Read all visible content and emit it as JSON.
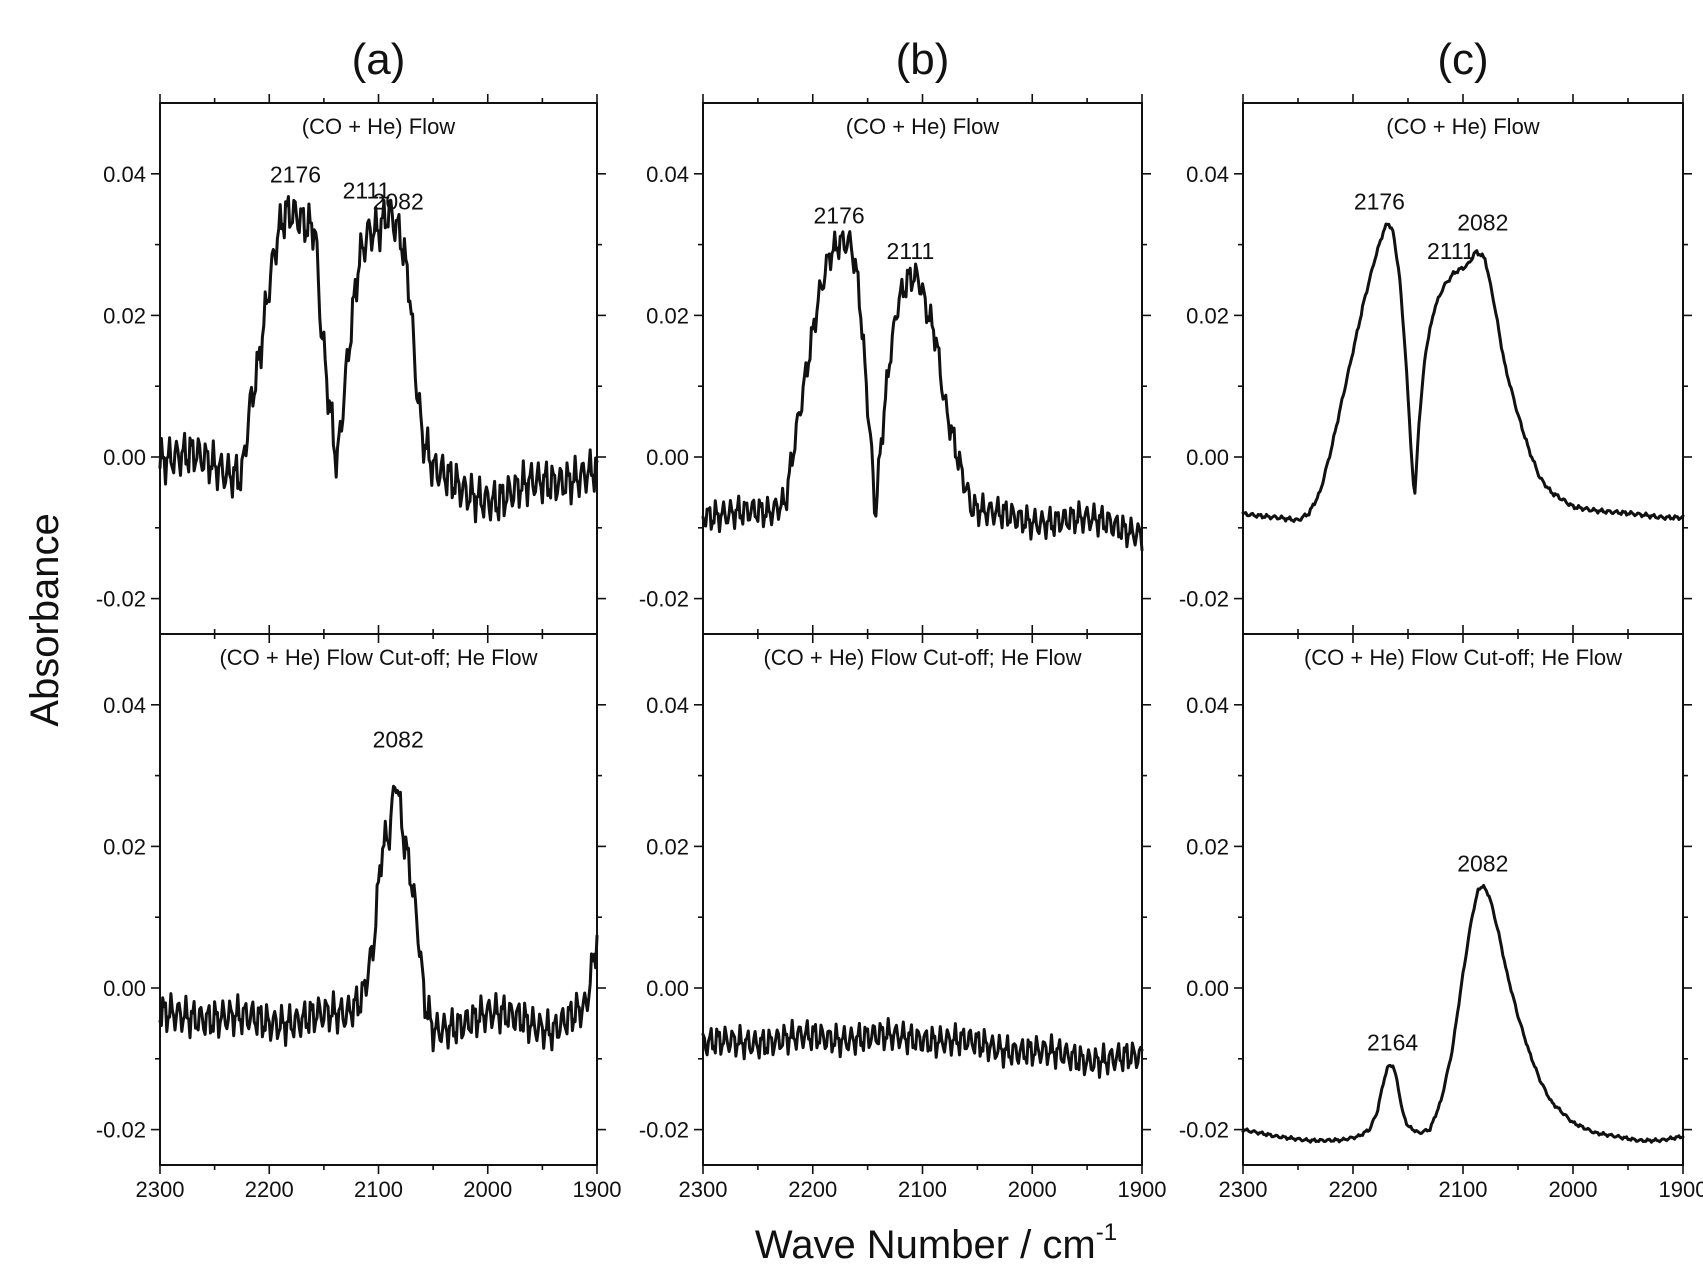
{
  "chart_data": {
    "type": "line",
    "y_axis_title": "Absorbance",
    "x_axis_title": "Wave Number / cm",
    "x_axis_title_superscript": "-1",
    "xlim": [
      2300,
      1900
    ],
    "ylim": [
      -0.025,
      0.05
    ],
    "x_ticks": [
      "2300",
      "2200",
      "2100",
      "2000",
      "1900"
    ],
    "y_ticks": [
      "0.04",
      "0.02",
      "0.00",
      "-0.02"
    ],
    "grid": false,
    "legend": "none",
    "panels": [
      {
        "label": "(a)",
        "top": {
          "condition": "(CO + He) Flow",
          "peaks": [
            {
              "text": "2176",
              "x": 2176,
              "y": 0.0368
            },
            {
              "text": "2111",
              "x": 2111,
              "y": 0.0345
            },
            {
              "text": "2082",
              "x": 2082,
              "y": 0.033
            }
          ],
          "noise": 0.004,
          "points": [
            [
              2300,
              0.0
            ],
            [
              2270,
              0.0
            ],
            [
              2240,
              -0.002
            ],
            [
              2225,
              -0.002
            ],
            [
              2218,
              0.007
            ],
            [
              2210,
              0.013
            ],
            [
              2200,
              0.024
            ],
            [
              2192,
              0.031
            ],
            [
              2185,
              0.034
            ],
            [
              2175,
              0.034
            ],
            [
              2165,
              0.033
            ],
            [
              2158,
              0.033
            ],
            [
              2153,
              0.02
            ],
            [
              2145,
              0.008
            ],
            [
              2138,
              -0.001
            ],
            [
              2132,
              0.008
            ],
            [
              2125,
              0.018
            ],
            [
              2118,
              0.027
            ],
            [
              2110,
              0.031
            ],
            [
              2100,
              0.032
            ],
            [
              2090,
              0.035
            ],
            [
              2080,
              0.032
            ],
            [
              2072,
              0.025
            ],
            [
              2066,
              0.012
            ],
            [
              2060,
              0.003
            ],
            [
              2050,
              -0.002
            ],
            [
              2020,
              -0.005
            ],
            [
              1990,
              -0.006
            ],
            [
              1960,
              -0.004
            ],
            [
              1930,
              -0.003
            ],
            [
              1900,
              -0.002
            ]
          ]
        },
        "bottom": {
          "condition": "(CO + He) Flow Cut-off; He Flow",
          "peaks": [
            {
              "text": "2082",
              "x": 2082,
              "y": 0.032
            }
          ],
          "noise": 0.0035,
          "points": [
            [
              2300,
              -0.004
            ],
            [
              2270,
              -0.004
            ],
            [
              2240,
              -0.004
            ],
            [
              2200,
              -0.005
            ],
            [
              2160,
              -0.004
            ],
            [
              2130,
              -0.004
            ],
            [
              2115,
              -0.001
            ],
            [
              2105,
              0.006
            ],
            [
              2097,
              0.02
            ],
            [
              2090,
              0.022
            ],
            [
              2084,
              0.03
            ],
            [
              2078,
              0.022
            ],
            [
              2070,
              0.015
            ],
            [
              2064,
              0.008
            ],
            [
              2058,
              -0.002
            ],
            [
              2050,
              -0.006
            ],
            [
              2030,
              -0.005
            ],
            [
              2000,
              -0.004
            ],
            [
              1970,
              -0.004
            ],
            [
              1940,
              -0.006
            ],
            [
              1910,
              -0.003
            ],
            [
              1900,
              0.007
            ]
          ]
        }
      },
      {
        "label": "(b)",
        "top": {
          "condition": "(CO + He) Flow",
          "peaks": [
            {
              "text": "2176",
              "x": 2176,
              "y": 0.031
            },
            {
              "text": "2111",
              "x": 2111,
              "y": 0.026
            }
          ],
          "noise": 0.0028,
          "points": [
            [
              2300,
              -0.008
            ],
            [
              2270,
              -0.008
            ],
            [
              2240,
              -0.008
            ],
            [
              2225,
              -0.006
            ],
            [
              2215,
              0.004
            ],
            [
              2205,
              0.013
            ],
            [
              2195,
              0.022
            ],
            [
              2185,
              0.028
            ],
            [
              2175,
              0.03
            ],
            [
              2165,
              0.03
            ],
            [
              2158,
              0.024
            ],
            [
              2152,
              0.012
            ],
            [
              2146,
              0.0
            ],
            [
              2143,
              -0.008
            ],
            [
              2138,
              0.002
            ],
            [
              2130,
              0.014
            ],
            [
              2122,
              0.022
            ],
            [
              2112,
              0.025
            ],
            [
              2104,
              0.025
            ],
            [
              2095,
              0.02
            ],
            [
              2088,
              0.017
            ],
            [
              2080,
              0.008
            ],
            [
              2072,
              0.003
            ],
            [
              2064,
              -0.002
            ],
            [
              2055,
              -0.007
            ],
            [
              2040,
              -0.008
            ],
            [
              2000,
              -0.009
            ],
            [
              1960,
              -0.009
            ],
            [
              1930,
              -0.009
            ],
            [
              1900,
              -0.011
            ]
          ]
        },
        "bottom": {
          "condition": "(CO + He) Flow Cut-off; He Flow",
          "peaks": [],
          "noise": 0.0028,
          "points": [
            [
              2300,
              -0.008
            ],
            [
              2200,
              -0.007
            ],
            [
              2100,
              -0.007
            ],
            [
              2050,
              -0.008
            ],
            [
              2000,
              -0.009
            ],
            [
              1950,
              -0.01
            ],
            [
              1900,
              -0.01
            ]
          ]
        }
      },
      {
        "label": "(c)",
        "top": {
          "condition": "(CO + He) Flow",
          "peaks": [
            {
              "text": "2176",
              "x": 2176,
              "y": 0.033
            },
            {
              "text": "2111",
              "x": 2111,
              "y": 0.026
            },
            {
              "text": "2082",
              "x": 2082,
              "y": 0.03
            }
          ],
          "noise": 0.0004,
          "points": [
            [
              2300,
              -0.008
            ],
            [
              2270,
              -0.0085
            ],
            [
              2250,
              -0.009
            ],
            [
              2240,
              -0.008
            ],
            [
              2230,
              -0.005
            ],
            [
              2220,
              0.001
            ],
            [
              2210,
              0.008
            ],
            [
              2200,
              0.015
            ],
            [
              2190,
              0.022
            ],
            [
              2180,
              0.028
            ],
            [
              2172,
              0.032
            ],
            [
              2168,
              0.033
            ],
            [
              2164,
              0.032
            ],
            [
              2158,
              0.026
            ],
            [
              2152,
              0.014
            ],
            [
              2148,
              0.003
            ],
            [
              2144,
              -0.006
            ],
            [
              2140,
              0.005
            ],
            [
              2134,
              0.015
            ],
            [
              2126,
              0.021
            ],
            [
              2118,
              0.024
            ],
            [
              2108,
              0.026
            ],
            [
              2096,
              0.027
            ],
            [
              2088,
              0.029
            ],
            [
              2080,
              0.028
            ],
            [
              2072,
              0.022
            ],
            [
              2062,
              0.013
            ],
            [
              2050,
              0.006
            ],
            [
              2040,
              0.001
            ],
            [
              2030,
              -0.003
            ],
            [
              2020,
              -0.005
            ],
            [
              2000,
              -0.007
            ],
            [
              1980,
              -0.0075
            ],
            [
              1950,
              -0.008
            ],
            [
              1920,
              -0.0085
            ],
            [
              1900,
              -0.0085
            ]
          ]
        },
        "bottom": {
          "condition": "(CO + He) Flow Cut-off; He Flow",
          "peaks": [
            {
              "text": "2164",
              "x": 2164,
              "y": -0.0108
            },
            {
              "text": "2082",
              "x": 2082,
              "y": 0.0145
            }
          ],
          "noise": 0.0003,
          "points": [
            [
              2300,
              -0.02
            ],
            [
              2270,
              -0.021
            ],
            [
              2240,
              -0.0215
            ],
            [
              2210,
              -0.0215
            ],
            [
              2195,
              -0.021
            ],
            [
              2185,
              -0.02
            ],
            [
              2178,
              -0.0175
            ],
            [
              2172,
              -0.013
            ],
            [
              2168,
              -0.011
            ],
            [
              2164,
              -0.0108
            ],
            [
              2160,
              -0.013
            ],
            [
              2155,
              -0.0175
            ],
            [
              2150,
              -0.0195
            ],
            [
              2140,
              -0.0205
            ],
            [
              2130,
              -0.02
            ],
            [
              2120,
              -0.016
            ],
            [
              2110,
              -0.009
            ],
            [
              2100,
              0.002
            ],
            [
              2092,
              0.01
            ],
            [
              2086,
              0.014
            ],
            [
              2082,
              0.0145
            ],
            [
              2076,
              0.013
            ],
            [
              2068,
              0.008
            ],
            [
              2060,
              0.002
            ],
            [
              2050,
              -0.004
            ],
            [
              2040,
              -0.009
            ],
            [
              2030,
              -0.013
            ],
            [
              2020,
              -0.016
            ],
            [
              2000,
              -0.019
            ],
            [
              1980,
              -0.0205
            ],
            [
              1960,
              -0.021
            ],
            [
              1940,
              -0.0215
            ],
            [
              1920,
              -0.0215
            ],
            [
              1900,
              -0.021
            ]
          ]
        }
      }
    ]
  }
}
